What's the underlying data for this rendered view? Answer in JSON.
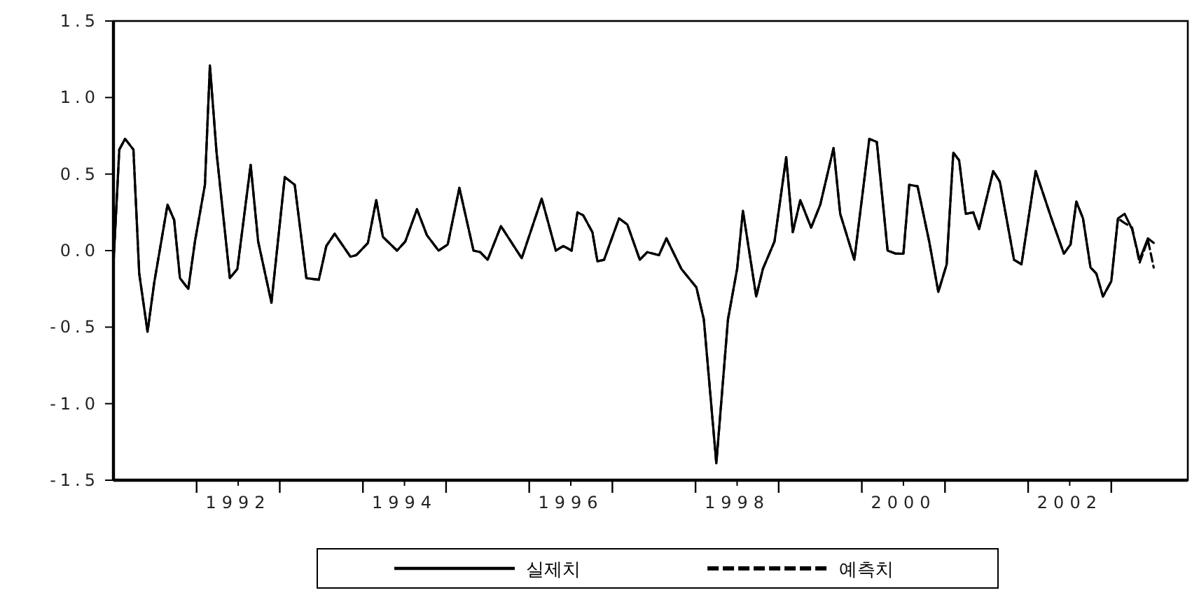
{
  "chart_data": {
    "type": "line",
    "x": [
      1991.0,
      1991.07,
      1991.14,
      1991.24,
      1991.31,
      1991.41,
      1991.49,
      1991.65,
      1991.73,
      1991.8,
      1991.9,
      1991.98,
      1992.1,
      1992.16,
      1992.24,
      1992.4,
      1992.49,
      1992.65,
      1992.74,
      1992.9,
      1993.06,
      1993.18,
      1993.32,
      1993.47,
      1993.56,
      1993.66,
      1993.85,
      1993.92,
      1994.06,
      1994.16,
      1994.24,
      1994.41,
      1994.51,
      1994.65,
      1994.77,
      1994.91,
      1995.02,
      1995.16,
      1995.33,
      1995.41,
      1995.5,
      1995.66,
      1995.91,
      1996.15,
      1996.32,
      1996.41,
      1996.51,
      1996.58,
      1996.65,
      1996.76,
      1996.82,
      1996.9,
      1997.08,
      1997.18,
      1997.33,
      1997.42,
      1997.56,
      1997.65,
      1997.83,
      1998.01,
      1998.1,
      1998.25,
      1998.39,
      1998.5,
      1998.57,
      1998.73,
      1998.81,
      1998.95,
      1999.09,
      1999.17,
      1999.26,
      1999.39,
      1999.5,
      1999.66,
      1999.74,
      1999.91,
      2000.09,
      2000.18,
      2000.31,
      2000.41,
      2000.5,
      2000.57,
      2000.67,
      2000.81,
      2000.92,
      2001.02,
      2001.1,
      2001.17,
      2001.25,
      2001.34,
      2001.41,
      2001.58,
      2001.66,
      2001.83,
      2001.92,
      2002.09,
      2002.28,
      2002.43,
      2002.51,
      2002.58,
      2002.66,
      2002.75,
      2002.82,
      2002.9,
      2003.0,
      2003.08,
      2003.16,
      2003.25,
      2003.34,
      2003.44,
      2003.51
    ],
    "series": [
      {
        "name": "실제치",
        "color": "#000000",
        "line_style": "solid",
        "values": [
          -0.09,
          0.66,
          0.73,
          0.66,
          -0.15,
          -0.53,
          -0.21,
          0.3,
          0.2,
          -0.18,
          -0.25,
          0.06,
          0.43,
          1.21,
          0.64,
          -0.18,
          -0.12,
          0.56,
          0.06,
          -0.34,
          0.48,
          0.43,
          -0.18,
          -0.19,
          0.03,
          0.11,
          -0.04,
          -0.03,
          0.05,
          0.33,
          0.09,
          0.0,
          0.06,
          0.27,
          0.1,
          0.0,
          0.04,
          0.41,
          0.0,
          -0.01,
          -0.06,
          0.16,
          -0.05,
          0.34,
          0.0,
          0.03,
          0.0,
          0.25,
          0.23,
          0.12,
          -0.07,
          -0.06,
          0.21,
          0.17,
          -0.06,
          -0.01,
          -0.03,
          0.08,
          -0.12,
          -0.24,
          -0.45,
          -1.39,
          -0.45,
          -0.12,
          0.26,
          -0.3,
          -0.12,
          0.06,
          0.61,
          0.12,
          0.33,
          0.15,
          0.3,
          0.67,
          0.24,
          -0.06,
          0.73,
          0.71,
          0.0,
          -0.02,
          -0.02,
          0.43,
          0.42,
          0.06,
          -0.27,
          -0.09,
          0.64,
          0.59,
          0.24,
          0.25,
          0.14,
          0.52,
          0.45,
          -0.06,
          -0.09,
          0.52,
          0.21,
          -0.02,
          0.04,
          0.32,
          0.21,
          -0.11,
          -0.15,
          -0.3,
          -0.2,
          0.21,
          0.24,
          0.14,
          -0.06,
          0.08,
          0.05
        ]
      },
      {
        "name": "예측치",
        "color": "#000000",
        "line_style": "dashed",
        "values": [
          -0.09,
          0.66,
          0.73,
          0.66,
          -0.15,
          -0.53,
          -0.21,
          0.3,
          0.2,
          -0.18,
          -0.25,
          0.06,
          0.43,
          1.21,
          0.64,
          -0.18,
          -0.12,
          0.56,
          0.06,
          -0.34,
          0.48,
          0.43,
          -0.18,
          -0.19,
          0.03,
          0.11,
          -0.04,
          -0.03,
          0.05,
          0.33,
          0.09,
          0.0,
          0.06,
          0.27,
          0.1,
          0.0,
          0.04,
          0.41,
          0.0,
          -0.01,
          -0.06,
          0.16,
          -0.05,
          0.34,
          0.0,
          0.03,
          0.0,
          0.25,
          0.23,
          0.12,
          -0.07,
          -0.06,
          0.21,
          0.17,
          -0.06,
          -0.01,
          -0.03,
          0.08,
          -0.12,
          -0.24,
          -0.45,
          -1.39,
          -0.45,
          -0.12,
          0.26,
          -0.3,
          -0.12,
          0.06,
          0.61,
          0.12,
          0.33,
          0.15,
          0.3,
          0.67,
          0.24,
          -0.06,
          0.73,
          0.71,
          0.0,
          -0.02,
          -0.02,
          0.43,
          0.42,
          0.06,
          -0.27,
          -0.09,
          0.64,
          0.59,
          0.24,
          0.25,
          0.14,
          0.52,
          0.45,
          -0.06,
          -0.09,
          0.52,
          0.21,
          -0.02,
          0.04,
          0.32,
          0.21,
          -0.11,
          -0.15,
          -0.3,
          -0.2,
          0.21,
          0.18,
          0.15,
          -0.08,
          0.07,
          -0.11
        ]
      }
    ],
    "xlim": [
      1991,
      2003.92
    ],
    "xticks": [
      {
        "value": 1992,
        "label": null
      },
      {
        "value": 1992.5,
        "label": "1992"
      },
      {
        "value": 1993,
        "label": null
      },
      {
        "value": 1994,
        "label": null
      },
      {
        "value": 1994.5,
        "label": "1994"
      },
      {
        "value": 1995,
        "label": null
      },
      {
        "value": 1996,
        "label": null
      },
      {
        "value": 1996.5,
        "label": "1996"
      },
      {
        "value": 1997,
        "label": null
      },
      {
        "value": 1998,
        "label": null
      },
      {
        "value": 1998.5,
        "label": "1998"
      },
      {
        "value": 1999,
        "label": null
      },
      {
        "value": 2000,
        "label": null
      },
      {
        "value": 2000.5,
        "label": "2000"
      },
      {
        "value": 2001,
        "label": null
      },
      {
        "value": 2002,
        "label": null
      },
      {
        "value": 2002.5,
        "label": "2002"
      },
      {
        "value": 2003,
        "label": null
      }
    ],
    "ylim": [
      -1.5,
      1.5
    ],
    "yticks": [
      {
        "value": 1.5,
        "label": "1.5"
      },
      {
        "value": 1.0,
        "label": "1.0"
      },
      {
        "value": 0.5,
        "label": "0.5"
      },
      {
        "value": 0.0,
        "label": "0.0"
      },
      {
        "value": -0.5,
        "label": "-0.5"
      },
      {
        "value": -1.0,
        "label": "-1.0"
      },
      {
        "value": -1.5,
        "label": "-1.5"
      }
    ],
    "grid": false,
    "legend": "bottom"
  }
}
